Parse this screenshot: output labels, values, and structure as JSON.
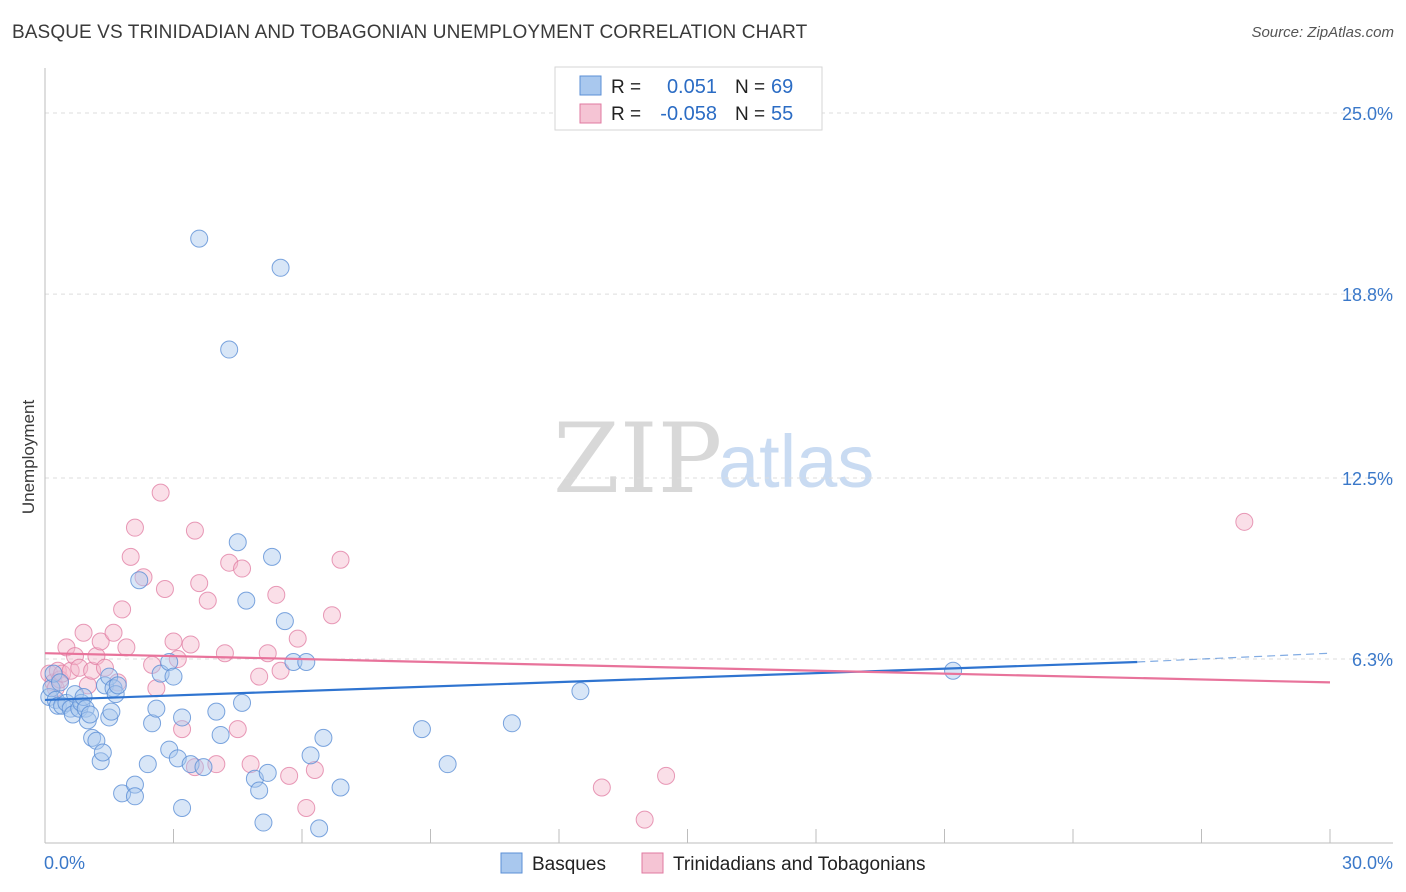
{
  "title": "BASQUE VS TRINIDADIAN AND TOBAGONIAN UNEMPLOYMENT CORRELATION CHART",
  "source": "Source: ZipAtlas.com",
  "watermark": {
    "part1": "ZIP",
    "part2": "atlas"
  },
  "colors": {
    "blue_fill": "#a9c8ee",
    "blue_stroke": "#5b8fd6",
    "blue_line": "#2f74d0",
    "pink_fill": "#f5b8cb",
    "pink_stroke": "#e07aa0",
    "pink_line": "#e8739b",
    "tick_text": "#3a78c9",
    "grid": "#dddddd"
  },
  "legend": {
    "row1": {
      "r_label": "R =",
      "r_value": "0.051",
      "n_label": "N =",
      "n_value": "69"
    },
    "row2": {
      "r_label": "R =",
      "r_value": "-0.058",
      "n_label": "N =",
      "n_value": "55"
    }
  },
  "chart_data": {
    "type": "scatter",
    "title": "BASQUE VS TRINIDADIAN AND TOBAGONIAN UNEMPLOYMENT CORRELATION CHART",
    "xlabel": "",
    "ylabel": "Unemployment",
    "xlim": [
      0,
      30
    ],
    "ylim": [
      0,
      26.2
    ],
    "x_tick_labels": [
      "0.0%",
      "30.0%"
    ],
    "y_ticks": [
      6.3,
      12.5,
      18.8,
      25.0
    ],
    "y_tick_labels": [
      "6.3%",
      "12.5%",
      "18.8%",
      "25.0%"
    ],
    "grid": "horizontal dashed",
    "legend_position": "top-center",
    "series": [
      {
        "name": "Basques",
        "color": "#a9c8ee",
        "trend": {
          "x": [
            0,
            25.5
          ],
          "y": [
            4.9,
            6.2
          ],
          "dashed_extension": {
            "x": [
              25.5,
              30
            ],
            "y": [
              6.2,
              6.5
            ]
          }
        },
        "points": [
          [
            0.1,
            5.0
          ],
          [
            0.15,
            5.3
          ],
          [
            0.2,
            5.8
          ],
          [
            0.25,
            4.9
          ],
          [
            0.3,
            4.7
          ],
          [
            0.35,
            5.5
          ],
          [
            0.4,
            4.7
          ],
          [
            0.5,
            4.8
          ],
          [
            0.6,
            4.6
          ],
          [
            0.65,
            4.4
          ],
          [
            0.7,
            5.1
          ],
          [
            0.8,
            4.6
          ],
          [
            0.85,
            4.8
          ],
          [
            0.9,
            5.0
          ],
          [
            0.95,
            4.6
          ],
          [
            1.0,
            4.2
          ],
          [
            1.05,
            4.4
          ],
          [
            1.1,
            3.6
          ],
          [
            1.2,
            3.5
          ],
          [
            1.3,
            2.8
          ],
          [
            1.35,
            3.1
          ],
          [
            1.4,
            5.4
          ],
          [
            1.5,
            5.7
          ],
          [
            1.5,
            4.3
          ],
          [
            1.55,
            4.5
          ],
          [
            1.6,
            5.3
          ],
          [
            1.65,
            5.1
          ],
          [
            1.7,
            5.4
          ],
          [
            1.8,
            1.7
          ],
          [
            2.1,
            2.0
          ],
          [
            2.1,
            1.6
          ],
          [
            2.2,
            9.0
          ],
          [
            2.4,
            2.7
          ],
          [
            2.5,
            4.1
          ],
          [
            2.6,
            4.6
          ],
          [
            2.7,
            5.8
          ],
          [
            2.9,
            3.2
          ],
          [
            2.9,
            6.2
          ],
          [
            3.0,
            5.7
          ],
          [
            3.1,
            2.9
          ],
          [
            3.2,
            1.2
          ],
          [
            3.2,
            4.3
          ],
          [
            3.4,
            2.7
          ],
          [
            3.6,
            20.7
          ],
          [
            3.7,
            2.6
          ],
          [
            4.0,
            4.5
          ],
          [
            4.1,
            3.7
          ],
          [
            4.3,
            16.9
          ],
          [
            4.5,
            10.3
          ],
          [
            4.6,
            4.8
          ],
          [
            4.7,
            8.3
          ],
          [
            4.9,
            2.2
          ],
          [
            5.0,
            1.8
          ],
          [
            5.2,
            2.4
          ],
          [
            5.3,
            9.8
          ],
          [
            5.5,
            19.7
          ],
          [
            5.6,
            7.6
          ],
          [
            5.8,
            6.2
          ],
          [
            6.1,
            6.2
          ],
          [
            6.2,
            3.0
          ],
          [
            6.4,
            0.5
          ],
          [
            6.5,
            3.6
          ],
          [
            6.9,
            1.9
          ],
          [
            8.8,
            3.9
          ],
          [
            9.4,
            2.7
          ],
          [
            10.9,
            4.1
          ],
          [
            12.5,
            5.2
          ],
          [
            21.2,
            5.9
          ],
          [
            5.1,
            0.7
          ]
        ]
      },
      {
        "name": "Trinidadians and Tobagonians",
        "color": "#f5b8cb",
        "trend": {
          "x": [
            0,
            30
          ],
          "y": [
            6.5,
            5.5
          ]
        },
        "points": [
          [
            0.1,
            5.8
          ],
          [
            0.2,
            5.5
          ],
          [
            0.25,
            5.3
          ],
          [
            0.3,
            5.9
          ],
          [
            0.35,
            5.6
          ],
          [
            0.4,
            5.8
          ],
          [
            0.5,
            6.7
          ],
          [
            0.6,
            5.9
          ],
          [
            0.7,
            6.4
          ],
          [
            0.8,
            6.0
          ],
          [
            0.9,
            7.2
          ],
          [
            1.0,
            5.4
          ],
          [
            1.1,
            5.9
          ],
          [
            1.2,
            6.4
          ],
          [
            1.3,
            6.9
          ],
          [
            1.4,
            6.0
          ],
          [
            1.6,
            7.2
          ],
          [
            1.7,
            5.5
          ],
          [
            1.8,
            8.0
          ],
          [
            1.9,
            6.7
          ],
          [
            2.0,
            9.8
          ],
          [
            2.1,
            10.8
          ],
          [
            2.3,
            9.1
          ],
          [
            2.5,
            6.1
          ],
          [
            2.6,
            5.3
          ],
          [
            2.7,
            12.0
          ],
          [
            2.8,
            8.7
          ],
          [
            3.0,
            6.9
          ],
          [
            3.1,
            6.3
          ],
          [
            3.2,
            3.9
          ],
          [
            3.4,
            6.8
          ],
          [
            3.5,
            2.6
          ],
          [
            3.5,
            10.7
          ],
          [
            3.6,
            8.9
          ],
          [
            3.8,
            8.3
          ],
          [
            4.0,
            2.7
          ],
          [
            4.2,
            6.5
          ],
          [
            4.3,
            9.6
          ],
          [
            4.5,
            3.9
          ],
          [
            4.6,
            9.4
          ],
          [
            4.8,
            2.7
          ],
          [
            5.0,
            5.7
          ],
          [
            5.2,
            6.5
          ],
          [
            5.4,
            8.5
          ],
          [
            5.5,
            5.9
          ],
          [
            5.7,
            2.3
          ],
          [
            5.9,
            7.0
          ],
          [
            6.1,
            1.2
          ],
          [
            6.3,
            2.5
          ],
          [
            6.7,
            7.8
          ],
          [
            6.9,
            9.7
          ],
          [
            13.0,
            1.9
          ],
          [
            14.0,
            0.8
          ],
          [
            14.5,
            2.3
          ],
          [
            28.0,
            11.0
          ]
        ]
      }
    ]
  },
  "bottom_legend": {
    "series1": "Basques",
    "series2": "Trinidadians and Tobagonians"
  }
}
